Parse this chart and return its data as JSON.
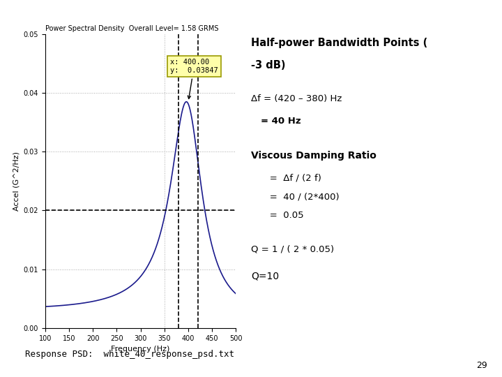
{
  "title": "Power Spectral Density  Overall Level= 1.58 GRMS",
  "xlabel": "Frequency (Hz)",
  "ylabel": "Accel (G^2/Hz)",
  "xlim": [
    100,
    500
  ],
  "ylim": [
    0.0,
    0.05
  ],
  "yticks": [
    0.0,
    0.01,
    0.02,
    0.03,
    0.04,
    0.05
  ],
  "xticks": [
    100,
    150,
    200,
    250,
    300,
    350,
    400,
    450,
    500
  ],
  "peak_freq": 400,
  "peak_val": 0.03847,
  "half_power_val": 0.02,
  "f_low": 380,
  "f_high": 420,
  "curve_color": "#1a1a8c",
  "dashed_line_color": "#000000",
  "dotted_line_color": "#aaaaaa",
  "tooltip_bg": "#ffffaa",
  "tooltip_border": "#999900",
  "tooltip_text": "x: 400.00\ny:  0.03847",
  "title1": "Half-power Bandwidth Points (",
  "title2": "-3 dB)",
  "line1": "Δf = (420 – 380) Hz",
  "line2": "    = 40 Hz",
  "line3": "Viscous Damping Ratio",
  "line4": "   =  Δf / (2 f)",
  "line5": "   =  40 / (2*400)",
  "line6": "   =  0.05",
  "line7": "Q = 1 / ( 2 * 0.05)",
  "line8": "Q=10",
  "bottom_text": "Response PSD:  white_40_response_psd.txt",
  "page_num": "29"
}
